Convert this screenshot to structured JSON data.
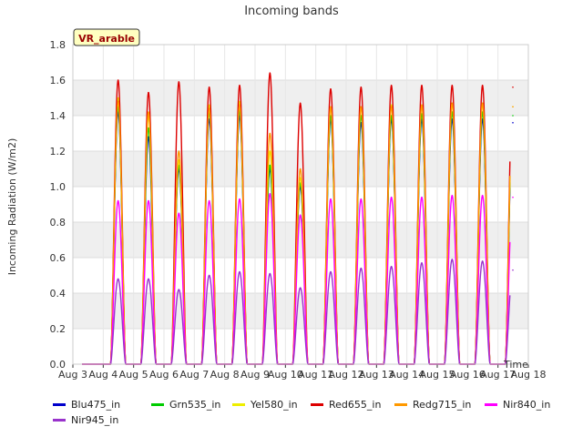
{
  "chart_data": {
    "type": "line",
    "title": "Incoming bands",
    "xlabel": "Time",
    "ylabel": "Incoming Radiation (W/m2)",
    "ylim": [
      0,
      1.8
    ],
    "yticks": [
      "0.0",
      "0.2",
      "0.4",
      "0.6",
      "0.8",
      "1.0",
      "1.2",
      "1.4",
      "1.6",
      "1.8"
    ],
    "x_ticks": [
      "Aug 3",
      "Aug 4",
      "Aug 5",
      "Aug 6",
      "Aug 7",
      "Aug 8",
      "Aug 9",
      "Aug 10",
      "Aug 11",
      "Aug 12",
      "Aug 13",
      "Aug 14",
      "Aug 15",
      "Aug 16",
      "Aug 17",
      "Aug 18"
    ],
    "xlim_days": [
      3,
      18
    ],
    "data_range_days": [
      3.3,
      17.4
    ],
    "annotation": "VR_arable",
    "grid": true,
    "legend_position": "bottom",
    "days": [
      4,
      5,
      6,
      7,
      8,
      9,
      10,
      11,
      12,
      13,
      14,
      15,
      16,
      17
    ],
    "series": [
      {
        "name": "Blu475_in",
        "color": "#0000cc",
        "daily_peaks": [
          1.42,
          1.28,
          1.1,
          1.38,
          1.4,
          1.1,
          1.0,
          1.38,
          1.36,
          1.38,
          1.38,
          1.38,
          1.38,
          1.36
        ]
      },
      {
        "name": "Grn535_in",
        "color": "#00cc00",
        "daily_peaks": [
          1.45,
          1.33,
          1.12,
          1.42,
          1.43,
          1.12,
          1.02,
          1.4,
          1.4,
          1.4,
          1.41,
          1.42,
          1.42,
          1.4
        ]
      },
      {
        "name": "Yel580_in",
        "color": "#eeee00",
        "daily_peaks": [
          1.5,
          1.4,
          1.15,
          1.46,
          1.48,
          1.2,
          1.05,
          1.45,
          1.45,
          1.46,
          1.46,
          1.47,
          1.47,
          1.45
        ]
      },
      {
        "name": "Red655_in",
        "color": "#dd0000",
        "daily_peaks": [
          1.6,
          1.53,
          1.59,
          1.56,
          1.57,
          1.64,
          1.47,
          1.55,
          1.56,
          1.57,
          1.57,
          1.57,
          1.57,
          1.56
        ]
      },
      {
        "name": "Redg715_in",
        "color": "#ff9900",
        "daily_peaks": [
          1.48,
          1.42,
          1.2,
          1.44,
          1.46,
          1.3,
          1.1,
          1.45,
          1.45,
          1.45,
          1.46,
          1.47,
          1.47,
          1.45
        ]
      },
      {
        "name": "Nir840_in",
        "color": "#ff00ff",
        "daily_peaks": [
          0.92,
          0.92,
          0.85,
          0.92,
          0.93,
          0.96,
          0.84,
          0.93,
          0.93,
          0.94,
          0.94,
          0.95,
          0.95,
          0.94
        ]
      },
      {
        "name": "Nir945_in",
        "color": "#9933cc",
        "daily_peaks": [
          0.48,
          0.48,
          0.42,
          0.5,
          0.52,
          0.51,
          0.43,
          0.52,
          0.54,
          0.55,
          0.57,
          0.59,
          0.58,
          0.53
        ]
      }
    ]
  }
}
